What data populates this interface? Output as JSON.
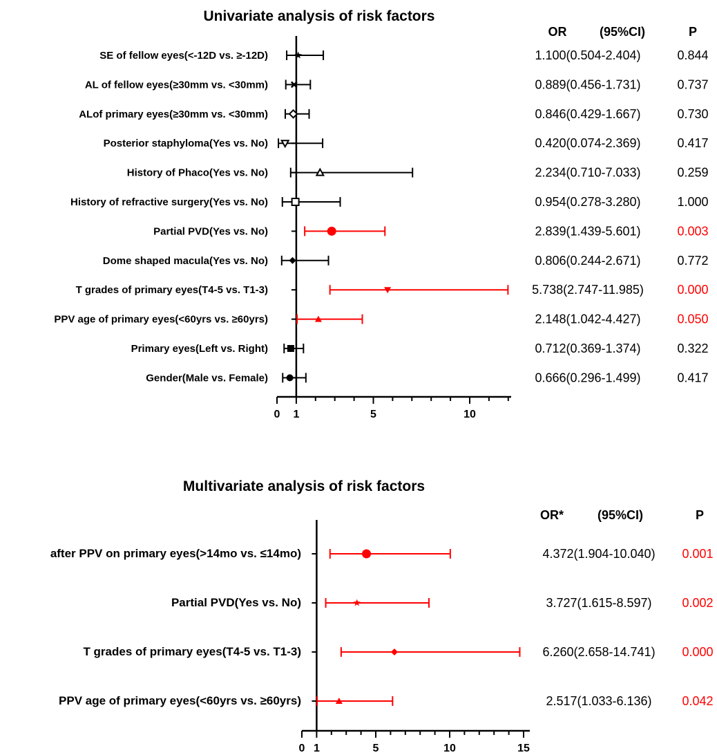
{
  "charts": [
    {
      "title": "Univariate analysis of risk factors",
      "header_or": "OR",
      "header_ci": "(95%CI)",
      "header_p": "P",
      "xticks": [
        "0",
        "1",
        "5",
        "10"
      ]
    },
    {
      "title": "Multivariate analysis of risk factors",
      "header_or": "OR*",
      "header_ci": "(95%CI)",
      "header_p": "P",
      "xticks": [
        "0",
        "1",
        "5",
        "10",
        "15"
      ]
    }
  ],
  "colors": {
    "default": "#000000",
    "significant": "#ff0000"
  },
  "chart_data": [
    {
      "type": "forest",
      "title": "Univariate analysis of risk factors",
      "xlim": [
        0,
        12
      ],
      "xticks": [
        0,
        1,
        5,
        10
      ],
      "rows": [
        {
          "label": "SE of fellow eyes(<-12D vs. ≥-12D)",
          "or": 1.1,
          "lo": 0.504,
          "hi": 2.404,
          "or_text": "1.100(0.504-2.404)",
          "p": "0.844",
          "marker": "star",
          "significant": false
        },
        {
          "label": "AL of fellow eyes(≥30mm vs. <30mm)",
          "or": 0.889,
          "lo": 0.456,
          "hi": 1.731,
          "or_text": "0.889(0.456-1.731)",
          "p": "0.737",
          "marker": "x",
          "significant": false
        },
        {
          "label": "ALof primary eyes(≥30mm vs. <30mm)",
          "or": 0.846,
          "lo": 0.429,
          "hi": 1.667,
          "or_text": "0.846(0.429-1.667)",
          "p": "0.730",
          "marker": "diamond-open",
          "significant": false
        },
        {
          "label": "Posterior staphyloma(Yes vs. No)",
          "or": 0.42,
          "lo": 0.074,
          "hi": 2.369,
          "or_text": "0.420(0.074-2.369)",
          "p": "0.417",
          "marker": "triangle-down-open",
          "significant": false
        },
        {
          "label": "History of Phaco(Yes vs. No)",
          "or": 2.234,
          "lo": 0.71,
          "hi": 7.033,
          "or_text": "2.234(0.710-7.033)",
          "p": "0.259",
          "marker": "triangle-up-open",
          "significant": false
        },
        {
          "label": "History of refractive surgery(Yes vs. No)",
          "or": 0.954,
          "lo": 0.278,
          "hi": 3.28,
          "or_text": "0.954(0.278-3.280)",
          "p": "1.000",
          "marker": "square-open",
          "significant": false
        },
        {
          "label": "Partial PVD(Yes vs. No)",
          "or": 2.839,
          "lo": 1.439,
          "hi": 5.601,
          "or_text": "2.839(1.439-5.601)",
          "p": "0.003",
          "marker": "circle",
          "significant": true
        },
        {
          "label": "Dome shaped macula(Yes vs. No)",
          "or": 0.806,
          "lo": 0.244,
          "hi": 2.671,
          "or_text": "0.806(0.244-2.671)",
          "p": "0.772",
          "marker": "diamond",
          "significant": false
        },
        {
          "label": "T grades of primary eyes(T4-5 vs. T1-3)",
          "or": 5.738,
          "lo": 2.747,
          "hi": 11.985,
          "or_text": "5.738(2.747-11.985)",
          "p": "0.000",
          "marker": "triangle-down",
          "significant": true
        },
        {
          "label": "PPV age of primary eyes(<60yrs vs. ≥60yrs)",
          "or": 2.148,
          "lo": 1.042,
          "hi": 4.427,
          "or_text": "2.148(1.042-4.427)",
          "p": "0.050",
          "marker": "triangle-up",
          "significant": true
        },
        {
          "label": "Primary eyes(Left vs. Right)",
          "or": 0.712,
          "lo": 0.369,
          "hi": 1.374,
          "or_text": "0.712(0.369-1.374)",
          "p": "0.322",
          "marker": "square",
          "significant": false
        },
        {
          "label": "Gender(Male vs. Female)",
          "or": 0.666,
          "lo": 0.296,
          "hi": 1.499,
          "or_text": "0.666(0.296-1.499)",
          "p": "0.417",
          "marker": "circle-small",
          "significant": false
        }
      ]
    },
    {
      "type": "forest",
      "title": "Multivariate analysis of risk factors",
      "xlim": [
        0,
        15
      ],
      "xticks": [
        0,
        1,
        5,
        10,
        15
      ],
      "rows": [
        {
          "label": "after PPV on primary eyes(>14mo vs. ≤14mo)",
          "or": 4.372,
          "lo": 1.904,
          "hi": 10.04,
          "or_text": "4.372(1.904-10.040)",
          "p": "0.001",
          "marker": "circle",
          "significant": true
        },
        {
          "label": "Partial PVD(Yes vs. No)",
          "or": 3.727,
          "lo": 1.615,
          "hi": 8.597,
          "or_text": "3.727(1.615-8.597)",
          "p": "0.002",
          "marker": "star",
          "significant": true
        },
        {
          "label": "T grades of primary eyes(T4-5 vs. T1-3)",
          "or": 6.26,
          "lo": 2.658,
          "hi": 14.741,
          "or_text": "6.260(2.658-14.741)",
          "p": "0.000",
          "marker": "diamond",
          "significant": true
        },
        {
          "label": "PPV age of primary eyes(<60yrs vs. ≥60yrs)",
          "or": 2.517,
          "lo": 1.033,
          "hi": 6.136,
          "or_text": "2.517(1.033-6.136)",
          "p": "0.042",
          "marker": "triangle-up",
          "significant": true
        }
      ]
    }
  ]
}
